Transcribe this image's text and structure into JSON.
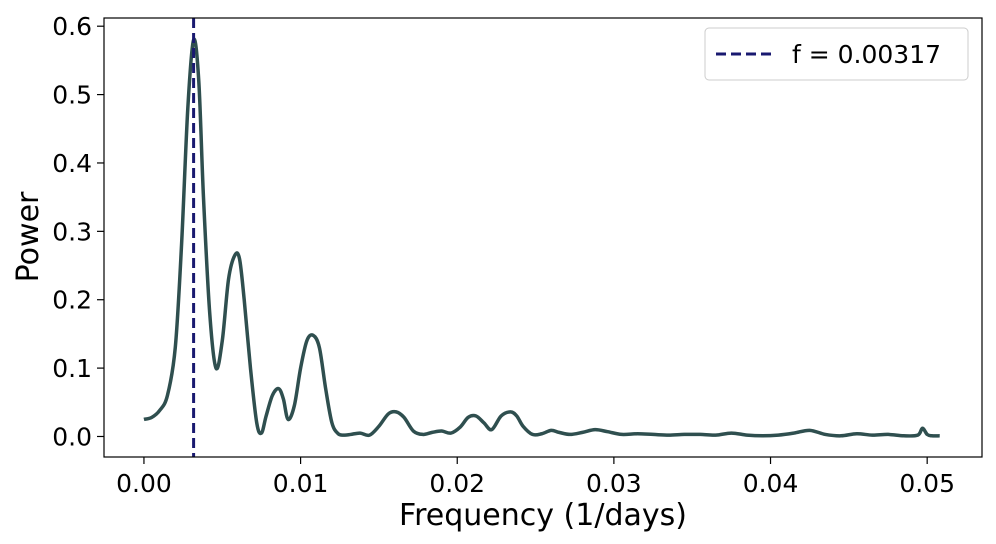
{
  "chart_data": {
    "type": "line",
    "title": "",
    "xlabel": "Frequency (1/days)",
    "ylabel": "Power",
    "xlim": [
      -0.00255,
      0.0535
    ],
    "ylim": [
      -0.03,
      0.612
    ],
    "xticks": [
      0.0,
      0.01,
      0.02,
      0.03,
      0.04,
      0.05
    ],
    "xtick_labels": [
      "0.00",
      "0.01",
      "0.02",
      "0.03",
      "0.04",
      "0.05"
    ],
    "yticks": [
      0.0,
      0.1,
      0.2,
      0.3,
      0.4,
      0.5,
      0.6
    ],
    "ytick_labels": [
      "0.0",
      "0.1",
      "0.2",
      "0.3",
      "0.4",
      "0.5",
      "0.6"
    ],
    "grid": false,
    "legend_position": "top-right",
    "series": [
      {
        "color": "#2f4f4f",
        "x": [
          0.0,
          0.0005,
          0.001,
          0.0015,
          0.002,
          0.0024,
          0.0028,
          0.00317,
          0.0035,
          0.0038,
          0.0042,
          0.0046,
          0.005,
          0.0054,
          0.0058,
          0.0061,
          0.0064,
          0.0068,
          0.0072,
          0.0075,
          0.0078,
          0.0082,
          0.0086,
          0.0089,
          0.0092,
          0.0096,
          0.01,
          0.0104,
          0.0108,
          0.0112,
          0.0116,
          0.012,
          0.0124,
          0.0128,
          0.0132,
          0.0138,
          0.0144,
          0.015,
          0.0156,
          0.0161,
          0.0166,
          0.0172,
          0.0178,
          0.0184,
          0.019,
          0.0196,
          0.0202,
          0.0207,
          0.0212,
          0.0217,
          0.0222,
          0.0228,
          0.0234,
          0.0238,
          0.0242,
          0.0248,
          0.0254,
          0.026,
          0.0265,
          0.0272,
          0.028,
          0.0288,
          0.0296,
          0.0305,
          0.0315,
          0.0325,
          0.0335,
          0.0345,
          0.0355,
          0.0365,
          0.0375,
          0.0385,
          0.0395,
          0.0405,
          0.0415,
          0.0425,
          0.0435,
          0.0445,
          0.0455,
          0.0465,
          0.0475,
          0.0485,
          0.0494,
          0.0497,
          0.05,
          0.0503,
          0.0508
        ],
        "y": [
          0.025,
          0.028,
          0.038,
          0.06,
          0.13,
          0.28,
          0.48,
          0.58,
          0.52,
          0.35,
          0.18,
          0.1,
          0.14,
          0.23,
          0.265,
          0.26,
          0.2,
          0.1,
          0.02,
          0.005,
          0.03,
          0.06,
          0.07,
          0.055,
          0.025,
          0.045,
          0.1,
          0.14,
          0.148,
          0.13,
          0.07,
          0.02,
          0.004,
          0.002,
          0.003,
          0.005,
          0.002,
          0.015,
          0.033,
          0.036,
          0.028,
          0.008,
          0.003,
          0.006,
          0.008,
          0.005,
          0.014,
          0.028,
          0.03,
          0.02,
          0.01,
          0.03,
          0.036,
          0.03,
          0.015,
          0.003,
          0.004,
          0.009,
          0.006,
          0.003,
          0.006,
          0.01,
          0.007,
          0.003,
          0.004,
          0.003,
          0.002,
          0.003,
          0.003,
          0.002,
          0.005,
          0.002,
          0.001,
          0.002,
          0.005,
          0.009,
          0.003,
          0.001,
          0.004,
          0.002,
          0.003,
          0.001,
          0.002,
          0.012,
          0.003,
          0.001,
          0.001
        ]
      }
    ],
    "vline": {
      "x": 0.00317,
      "color": "#191970",
      "style": "dashed",
      "label": "f = 0.00317"
    }
  }
}
